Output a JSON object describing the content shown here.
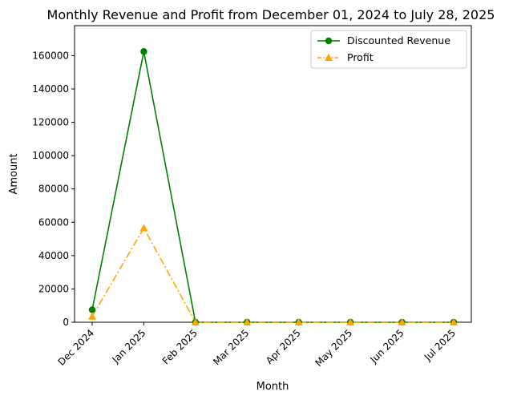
{
  "chart_data": {
    "type": "line",
    "title": "Monthly Revenue and Profit from December 01, 2024 to July 28, 2025",
    "xlabel": "Month",
    "ylabel": "Amount",
    "categories": [
      "Dec 2024",
      "Jan 2025",
      "Feb 2025",
      "Mar 2025",
      "Apr 2025",
      "May 2025",
      "Jun 2025",
      "Jul 2025"
    ],
    "ylim": [
      0,
      178000
    ],
    "yticks": [
      0,
      20000,
      40000,
      60000,
      80000,
      100000,
      120000,
      140000,
      160000
    ],
    "grid": false,
    "legend_position": "top-right",
    "series": [
      {
        "name": "Discounted Revenue",
        "values": [
          7500,
          162500,
          0,
          0,
          0,
          0,
          0,
          0
        ],
        "color": "#008000",
        "line_style": "solid",
        "marker": "circle"
      },
      {
        "name": "Profit",
        "values": [
          3500,
          56500,
          0,
          0,
          0,
          0,
          0,
          0
        ],
        "color": "#ffa500",
        "line_style": "dashdot",
        "marker": "triangle"
      }
    ]
  }
}
